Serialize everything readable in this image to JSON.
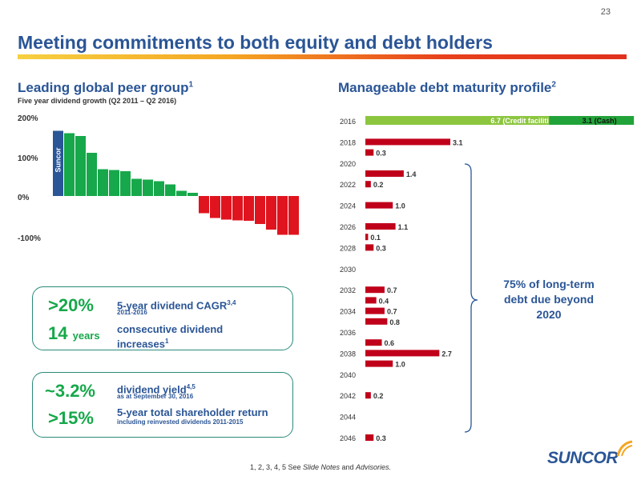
{
  "page_number": "23",
  "title": "Meeting commitments to both equity and debt holders",
  "peer": {
    "heading": "Leading global peer group",
    "heading_sup": "1",
    "subtitle": "Five year dividend growth (Q2 2011 – Q2 2016)",
    "suncor_label": "Suncor"
  },
  "debt": {
    "heading": "Manageable debt maturity profile",
    "heading_sup": "2",
    "note": "75% of long-term debt due beyond 2020"
  },
  "box1": {
    "stat1": ">20%",
    "label1": "5-year dividend CAGR",
    "label1_sup": "3,4",
    "note1": "2011-2016",
    "stat2_num": "14",
    "stat2_unit": "years",
    "label2_line1": "consecutive dividend",
    "label2_line2": "increases",
    "label2_sup": "1"
  },
  "box2": {
    "stat1": "~3.2%",
    "label1": "dividend yield",
    "label1_sup": "4,5",
    "note1": "as at September 30, 2016",
    "stat2": ">15%",
    "label2": "5-year total shareholder return",
    "note2": "including reinvested dividends 2011-2015"
  },
  "footnote": {
    "prefix": "1, 2, 3, 4, 5  See ",
    "slide_notes": "Slide Notes",
    "and": " and ",
    "advisories": "Advisories."
  },
  "logo": "SUNCOR",
  "colors": {
    "title": "#2a5596",
    "positive": "#16a84a",
    "negative": "#e0141e",
    "suncor": "#2a5596",
    "debt_bar": "#c0001a",
    "credit": "#8cc63f",
    "cash": "#22a33a"
  },
  "chart_data": [
    {
      "type": "bar",
      "title": "",
      "yticks": [
        "200%",
        "100%",
        "0%",
        "-100%"
      ],
      "ylim": [
        -100,
        200
      ],
      "values": [
        163,
        157,
        150,
        108,
        67,
        65,
        62,
        43,
        41,
        37,
        29,
        13,
        8,
        -43,
        -55,
        -59,
        -61,
        -62,
        -70,
        -84,
        -97,
        -97
      ],
      "highlight_index": 0,
      "highlight_label": "Suncor"
    },
    {
      "type": "bar",
      "orientation": "horizontal",
      "title": "",
      "year_labels": [
        "2016",
        "2018",
        "2020",
        "2022",
        "2024",
        "2026",
        "2028",
        "2030",
        "2032",
        "2034",
        "2036",
        "2038",
        "2040",
        "2042",
        "2044",
        "2046"
      ],
      "stacked_2016": [
        {
          "name": "6.7 (Credit facilities)",
          "value": 6.7
        },
        {
          "name": "3.1 (Cash)",
          "value": 3.1
        }
      ],
      "bars": [
        {
          "year": 2018,
          "value": 3.1,
          "label": "3.1"
        },
        {
          "year": 2019,
          "value": 0.3,
          "label": "0.3"
        },
        {
          "year": 2021,
          "value": 1.4,
          "label": "1.4"
        },
        {
          "year": 2022,
          "value": 0.2,
          "label": "0.2"
        },
        {
          "year": 2024,
          "value": 1.0,
          "label": "1.0"
        },
        {
          "year": 2026,
          "value": 1.1,
          "label": "1.1"
        },
        {
          "year": 2027,
          "value": 0.1,
          "label": "0.1"
        },
        {
          "year": 2028,
          "value": 0.3,
          "label": "0.3"
        },
        {
          "year": 2032,
          "value": 0.7,
          "label": "0.7"
        },
        {
          "year": 2033,
          "value": 0.4,
          "label": "0.4"
        },
        {
          "year": 2034,
          "value": 0.7,
          "label": "0.7"
        },
        {
          "year": 2035,
          "value": 0.8,
          "label": "0.8"
        },
        {
          "year": 2037,
          "value": 0.6,
          "label": "0.6"
        },
        {
          "year": 2038,
          "value": 2.7,
          "label": "2.7"
        },
        {
          "year": 2039,
          "value": 1.0,
          "label": "1.0"
        },
        {
          "year": 2042,
          "value": 0.2,
          "label": "0.2"
        },
        {
          "year": 2046,
          "value": 0.3,
          "label": "0.3"
        }
      ]
    }
  ]
}
